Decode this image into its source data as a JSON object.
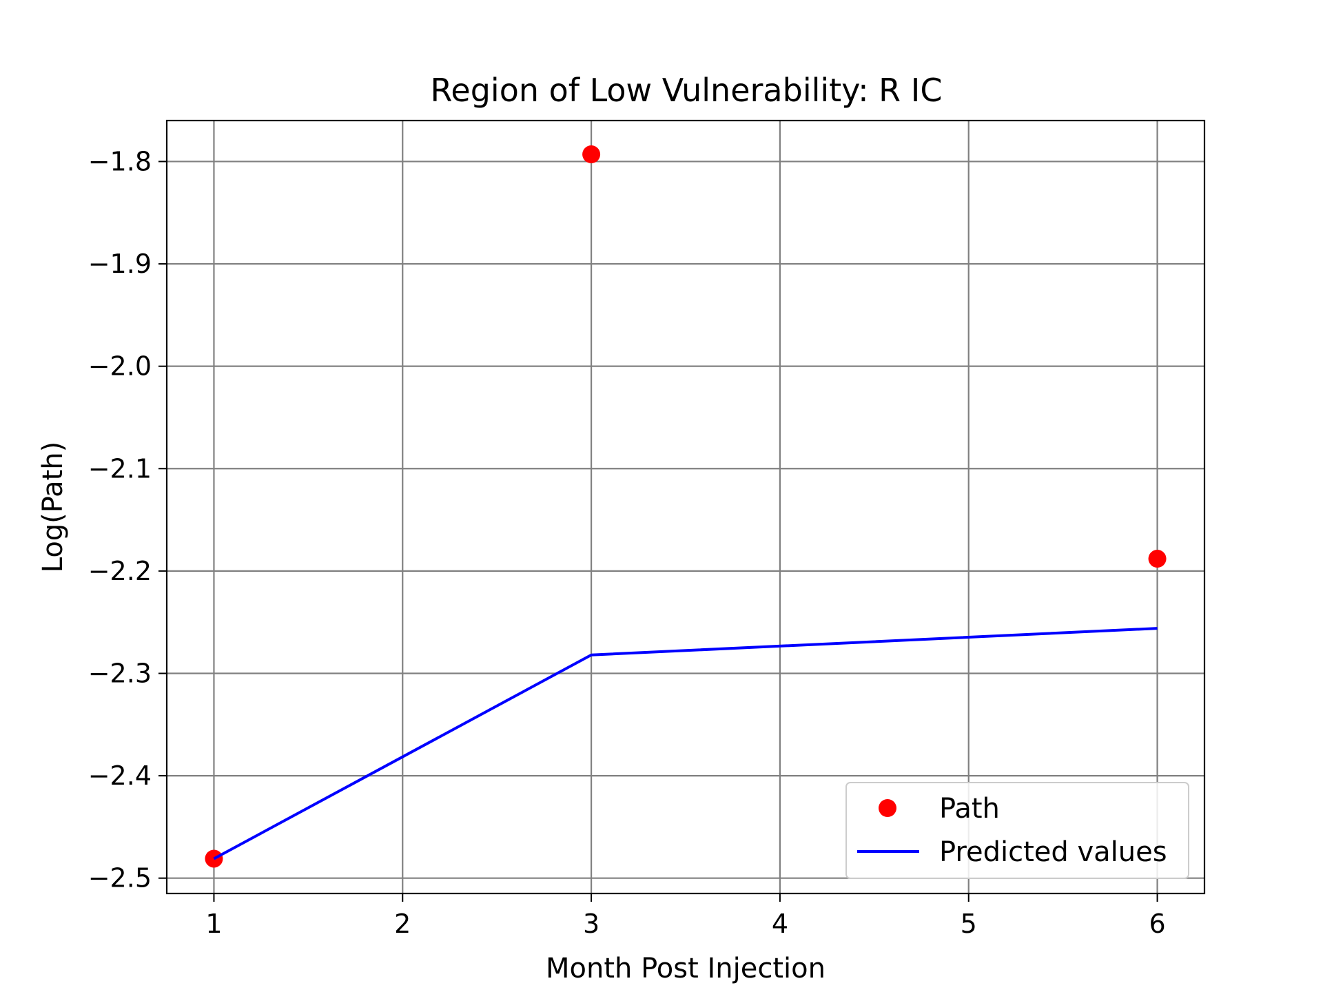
{
  "chart_data": {
    "type": "line",
    "title": "Region of Low Vulnerability: R IC",
    "xlabel": "Month Post Injection",
    "ylabel": "Log(Path)",
    "xlim": [
      0.75,
      6.25
    ],
    "ylim": [
      -2.515,
      -1.76
    ],
    "xticks": [
      1,
      2,
      3,
      4,
      5,
      6
    ],
    "yticks": [
      -2.5,
      -2.4,
      -2.3,
      -2.2,
      -2.1,
      -2.0,
      -1.9,
      -1.8
    ],
    "xtick_labels": [
      "1",
      "2",
      "3",
      "4",
      "5",
      "6"
    ],
    "ytick_labels": [
      "−2.5",
      "−2.4",
      "−2.3",
      "−2.2",
      "−2.1",
      "−2.0",
      "−1.9",
      "−1.8"
    ],
    "grid": true,
    "legend_position": "lower-right",
    "series": [
      {
        "name": "Path",
        "kind": "scatter",
        "color": "#ff0000",
        "x": [
          1,
          3,
          6
        ],
        "y": [
          -2.481,
          -1.793,
          -2.188
        ]
      },
      {
        "name": "Predicted values",
        "kind": "line",
        "color": "#0000ff",
        "x": [
          1,
          3,
          6
        ],
        "y": [
          -2.481,
          -2.282,
          -2.256
        ]
      }
    ]
  }
}
